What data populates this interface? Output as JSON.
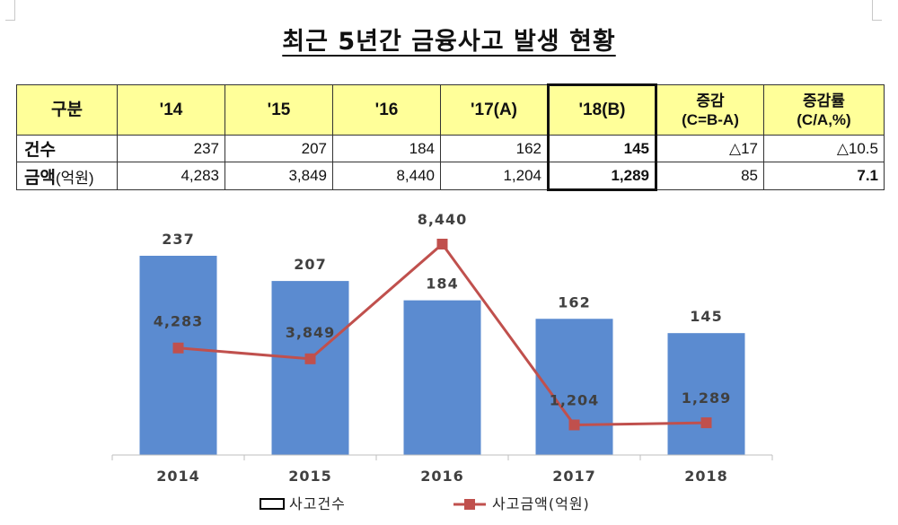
{
  "title": "최근 5년간 금융사고 발생 현황",
  "table": {
    "headers": [
      "구분",
      "'14",
      "'15",
      "'16",
      "'17(A)",
      "'18(B)",
      "증감\n(C=B-A)",
      "증감률\n(C/A,%)"
    ],
    "rows": [
      {
        "label": "건수",
        "label_sub": "",
        "cells": [
          "237",
          "207",
          "184",
          "162",
          "145",
          "△17",
          "△10.5"
        ]
      },
      {
        "label": "금액",
        "label_sub": "(억원)",
        "cells": [
          "4,283",
          "3,849",
          "8,440",
          "1,204",
          "1,289",
          "85",
          "7.1"
        ]
      }
    ]
  },
  "chart_data": {
    "type": "bar",
    "categories": [
      "2014",
      "2015",
      "2016",
      "2017",
      "2018"
    ],
    "series": [
      {
        "name": "사고건수",
        "type": "bar",
        "values": [
          237,
          207,
          184,
          162,
          145
        ],
        "labels": [
          "237",
          "207",
          "184",
          "162",
          "145"
        ],
        "color": "#5b8bd0"
      },
      {
        "name": "사고금액(억원)",
        "type": "line",
        "values": [
          4283,
          3849,
          8440,
          1204,
          1289
        ],
        "labels": [
          "4,283",
          "3,849",
          "8,440",
          "1,204",
          "1,289"
        ],
        "color": "#c0504d"
      }
    ],
    "title": "",
    "xlabel": "",
    "ylabel": "",
    "ylim_bar": [
      0,
      250
    ],
    "ylim_line": [
      0,
      9000
    ],
    "grid": false,
    "legend_position": "bottom"
  }
}
